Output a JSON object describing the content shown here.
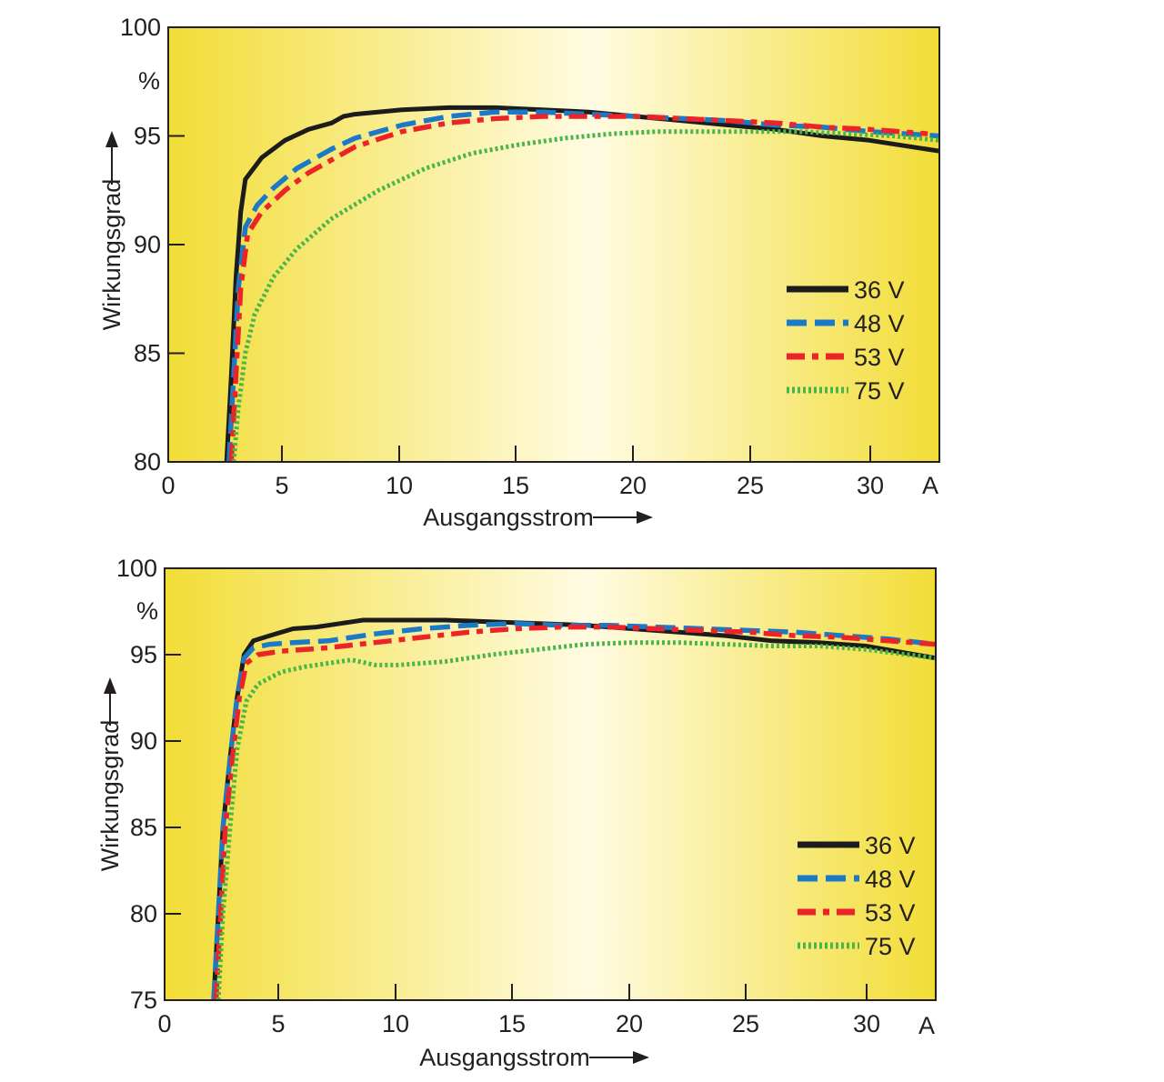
{
  "colors": {
    "plot_edge": "#f2dd36",
    "plot_center": "#fffbe3",
    "axis": "#231f20",
    "36V": "#1c1c1c",
    "48V": "#1a7ac8",
    "53V": "#ec2427",
    "75V": "#49b649"
  },
  "chart_data": [
    {
      "type": "line",
      "xlabel": "Ausgangsstrom",
      "ylabel": "Wirkungsgrad",
      "x_unit": "A",
      "y_unit": "%",
      "xlim": [
        0,
        33
      ],
      "ylim": [
        80,
        100
      ],
      "xticks": [
        "0",
        "5",
        "10",
        "15",
        "20",
        "25",
        "30"
      ],
      "yticks": [
        "80",
        "85",
        "90",
        "95",
        "100"
      ],
      "grid": false,
      "legend_position": "right",
      "series": [
        {
          "name": "36 V",
          "style": "solid",
          "color_key": "36V",
          "x": [
            2.5,
            2.7,
            2.9,
            3.1,
            3.3,
            4,
            5,
            6,
            7,
            7.5,
            8,
            10,
            12,
            14,
            16,
            18,
            20,
            22,
            24,
            26,
            28,
            30,
            33
          ],
          "y": [
            80,
            84,
            88.5,
            91.5,
            93,
            94,
            94.8,
            95.3,
            95.6,
            95.9,
            96,
            96.2,
            96.3,
            96.3,
            96.2,
            96.1,
            95.9,
            95.7,
            95.5,
            95.3,
            95.0,
            94.8,
            94.3
          ]
        },
        {
          "name": "48 V",
          "style": "dashed",
          "color_key": "48V",
          "x": [
            2.6,
            2.8,
            3.0,
            3.3,
            3.8,
            4.5,
            5.5,
            7,
            8,
            10,
            12,
            14,
            16,
            18,
            20,
            22,
            24,
            26,
            28,
            30,
            33
          ],
          "y": [
            80,
            84,
            88,
            90.8,
            91.8,
            92.6,
            93.5,
            94.4,
            94.9,
            95.5,
            95.9,
            96.1,
            96.1,
            96.0,
            95.9,
            95.8,
            95.7,
            95.5,
            95.4,
            95.2,
            95.0
          ]
        },
        {
          "name": "53 V",
          "style": "dashdot",
          "color_key": "53V",
          "x": [
            2.7,
            2.9,
            3.1,
            3.4,
            4,
            5,
            6,
            8,
            10,
            12,
            14,
            16,
            18,
            20,
            22,
            24,
            26,
            28,
            30,
            32.5
          ],
          "y": [
            80,
            84,
            88,
            90.5,
            91.5,
            92.5,
            93.3,
            94.5,
            95.2,
            95.6,
            95.8,
            95.9,
            95.9,
            95.9,
            95.8,
            95.7,
            95.6,
            95.4,
            95.3,
            95.1
          ]
        },
        {
          "name": "75 V",
          "style": "dotted",
          "color_key": "75V",
          "x": [
            2.8,
            3.0,
            3.3,
            3.7,
            4.5,
            5.5,
            7,
            9,
            11,
            13,
            15,
            17,
            19,
            21,
            23,
            25,
            27,
            29,
            31,
            33
          ],
          "y": [
            80,
            82.5,
            85,
            86.8,
            88.5,
            89.8,
            91.2,
            92.5,
            93.5,
            94.2,
            94.6,
            94.9,
            95.1,
            95.2,
            95.2,
            95.2,
            95.2,
            95.1,
            95.0,
            94.8
          ]
        }
      ]
    },
    {
      "type": "line",
      "xlabel": "Ausgangsstrom",
      "ylabel": "Wirkungsgrad",
      "x_unit": "A",
      "y_unit": "%",
      "xlim": [
        0,
        33
      ],
      "ylim": [
        75,
        100
      ],
      "xticks": [
        "0",
        "5",
        "10",
        "15",
        "20",
        "25",
        "30"
      ],
      "yticks": [
        "75",
        "80",
        "85",
        "90",
        "95",
        "100"
      ],
      "grid": false,
      "legend_position": "bottom-right",
      "series": [
        {
          "name": "36 V",
          "style": "solid",
          "color_key": "36V",
          "x": [
            2.1,
            2.3,
            2.5,
            2.8,
            3.1,
            3.4,
            3.8,
            4.5,
            5.5,
            6.5,
            7.5,
            8.5,
            10,
            12,
            14,
            16,
            18,
            20,
            22,
            24,
            26,
            28,
            30,
            33
          ],
          "y": [
            75,
            80,
            85,
            89,
            92.5,
            95,
            95.8,
            96.1,
            96.5,
            96.6,
            96.8,
            97.0,
            97.0,
            97.0,
            96.9,
            96.8,
            96.7,
            96.5,
            96.3,
            96.1,
            95.8,
            95.7,
            95.5,
            94.8
          ]
        },
        {
          "name": "48 V",
          "style": "dashed",
          "color_key": "48V",
          "x": [
            2.1,
            2.3,
            2.5,
            2.8,
            3.1,
            3.4,
            3.8,
            4.5,
            5.5,
            7,
            9,
            11,
            13,
            15,
            17,
            19,
            21,
            23,
            25,
            27,
            29,
            31,
            33
          ],
          "y": [
            75,
            80,
            85,
            89,
            92.5,
            94.8,
            95.4,
            95.6,
            95.7,
            95.8,
            96.2,
            96.5,
            96.7,
            96.8,
            96.7,
            96.7,
            96.6,
            96.5,
            96.4,
            96.3,
            96.1,
            95.9,
            95.6
          ]
        },
        {
          "name": "53 V",
          "style": "dashdot",
          "color_key": "53V",
          "x": [
            2.2,
            2.4,
            2.6,
            2.9,
            3.2,
            3.5,
            4,
            5,
            7,
            9,
            11,
            13,
            15,
            17,
            19,
            21,
            23,
            25,
            27,
            29,
            31,
            33
          ],
          "y": [
            75,
            80,
            85,
            89,
            92.5,
            94.5,
            95.0,
            95.2,
            95.4,
            95.7,
            96.0,
            96.3,
            96.5,
            96.6,
            96.6,
            96.5,
            96.4,
            96.3,
            96.1,
            96.0,
            95.8,
            95.6
          ]
        },
        {
          "name": "75 V",
          "style": "dotted",
          "color_key": "75V",
          "x": [
            2.3,
            2.5,
            2.8,
            3.1,
            3.5,
            4,
            5,
            6,
            7,
            8,
            9,
            10,
            12,
            14,
            16,
            18,
            20,
            22,
            24,
            26,
            28,
            30,
            33
          ],
          "y": [
            75,
            80,
            85,
            89.5,
            92.3,
            93.3,
            94.0,
            94.3,
            94.5,
            94.7,
            94.4,
            94.4,
            94.6,
            95.0,
            95.3,
            95.6,
            95.7,
            95.7,
            95.6,
            95.5,
            95.5,
            95.3,
            94.8
          ]
        }
      ]
    }
  ]
}
